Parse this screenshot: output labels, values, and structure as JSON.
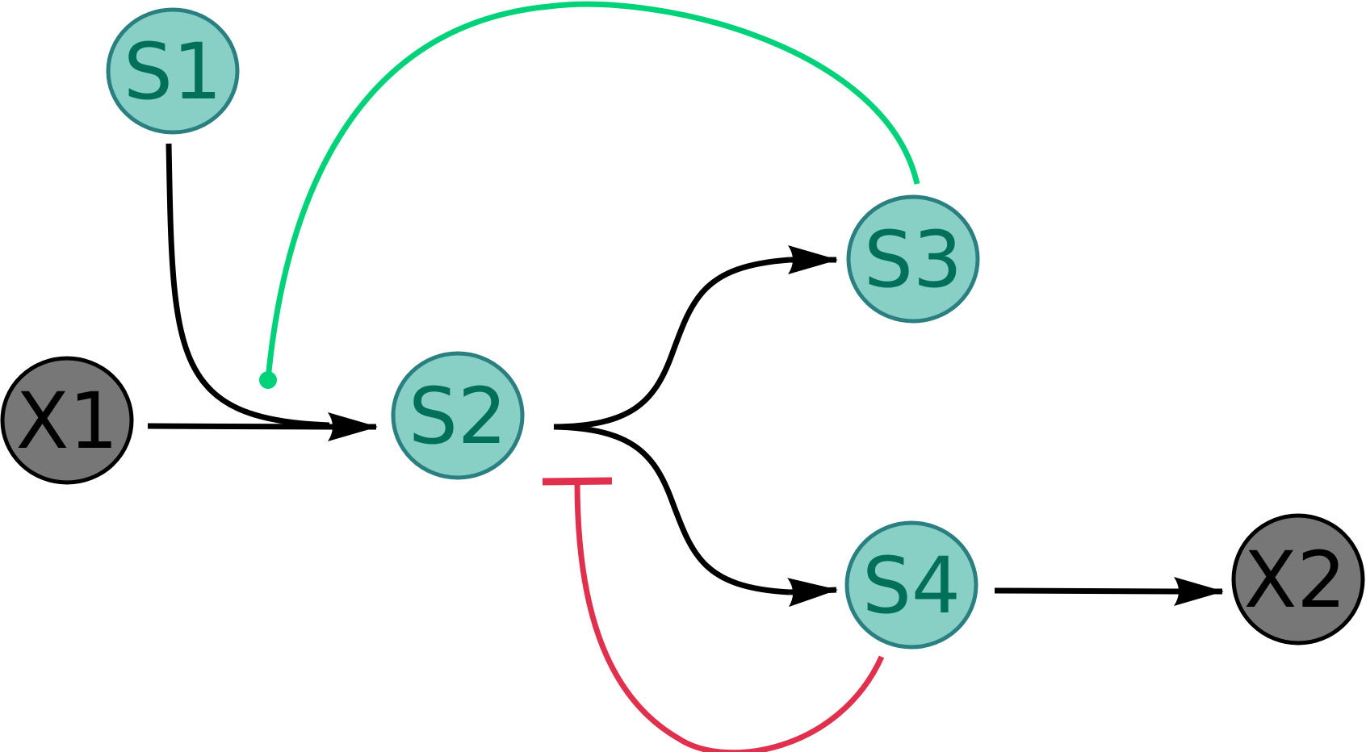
{
  "colors": {
    "species_fill": "#88cfc6",
    "species_stroke": "#2a8080",
    "species_text": "#00705a",
    "external_fill": "#777777",
    "external_stroke": "#000000",
    "external_text": "#000000",
    "reaction_edge": "#000000",
    "modifier_edge": "#00d27a",
    "inhibitor_edge": "#e0304e"
  },
  "nodes": [
    {
      "id": "S1",
      "label": "S1",
      "kind": "species"
    },
    {
      "id": "S2",
      "label": "S2",
      "kind": "species"
    },
    {
      "id": "S3",
      "label": "S3",
      "kind": "species"
    },
    {
      "id": "S4",
      "label": "S4",
      "kind": "species"
    },
    {
      "id": "X1",
      "label": "X1",
      "kind": "external"
    },
    {
      "id": "X2",
      "label": "X2",
      "kind": "external"
    }
  ],
  "edges": [
    {
      "id": "e-x1-s2",
      "kind": "reaction",
      "reactants": [
        "X1",
        "S1"
      ],
      "products": [
        "S2"
      ]
    },
    {
      "id": "e-s2-s3",
      "kind": "reaction",
      "reactants": [
        "S2"
      ],
      "products": [
        "S3"
      ]
    },
    {
      "id": "e-s2-s4",
      "kind": "reaction",
      "reactants": [
        "S2"
      ],
      "products": [
        "S4"
      ]
    },
    {
      "id": "e-s4-x2",
      "kind": "reaction",
      "reactants": [
        "S4"
      ],
      "products": [
        "X2"
      ]
    },
    {
      "id": "e-s3-mod",
      "kind": "modifier",
      "from": "S3",
      "to": "e-x1-s2"
    },
    {
      "id": "e-s4-inh",
      "kind": "inhibitor",
      "from": "S4",
      "to": "e-s2-s4"
    }
  ]
}
